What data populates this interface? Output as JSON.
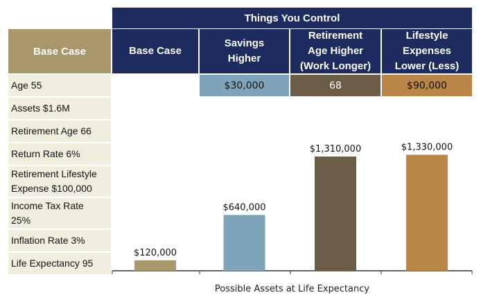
{
  "header": {
    "top_label": "Things You Control",
    "base_label": "Base Case",
    "columns": [
      {
        "lines": [
          "Base Case"
        ]
      },
      {
        "lines": [
          "Savings",
          "Higher"
        ]
      },
      {
        "lines": [
          "Retirement",
          "Age Higher",
          "(Work Longer)"
        ]
      },
      {
        "lines": [
          "Lifestyle",
          "Expenses",
          "Lower (Less)"
        ]
      }
    ]
  },
  "sidebar": {
    "items": [
      {
        "lines": [
          "Age 55"
        ]
      },
      {
        "lines": [
          "Assets $1.6M"
        ]
      },
      {
        "lines": [
          "Retirement Age 66"
        ]
      },
      {
        "lines": [
          "Return Rate 6%"
        ]
      },
      {
        "lines": [
          "Retirement Lifestyle",
          "Expense $100,000"
        ]
      },
      {
        "lines": [
          "Income Tax Rate",
          "25%"
        ]
      },
      {
        "lines": [
          "Inflation Rate 3%"
        ]
      },
      {
        "lines": [
          "Life Expectancy 95"
        ]
      }
    ]
  },
  "scenario_values": [
    "",
    "$30,000",
    "68",
    "$90,000"
  ],
  "colors": {
    "navy": "#1d2b5e",
    "base": "#a8976c",
    "savings": "#7fa3b8",
    "retirement_age": "#6b5d47",
    "lifestyle": "#b98548",
    "sidebar_bg": "#f1eee0"
  },
  "chart_data": {
    "type": "bar",
    "categories": [
      "Base Case",
      "Savings Higher",
      "Retirement Age Higher (Work Longer)",
      "Lifestyle Expenses Lower (Less)"
    ],
    "values": [
      120000,
      640000,
      1310000,
      1330000
    ],
    "value_labels": [
      "$120,000",
      "$640,000",
      "$1,310,000",
      "$1,330,000"
    ],
    "bar_colors": [
      "#a8976c",
      "#7fa3b8",
      "#6b5d47",
      "#b98548"
    ],
    "xlabel": "Possible Assets at Life Expectancy",
    "ylabel": "",
    "grid": false
  }
}
